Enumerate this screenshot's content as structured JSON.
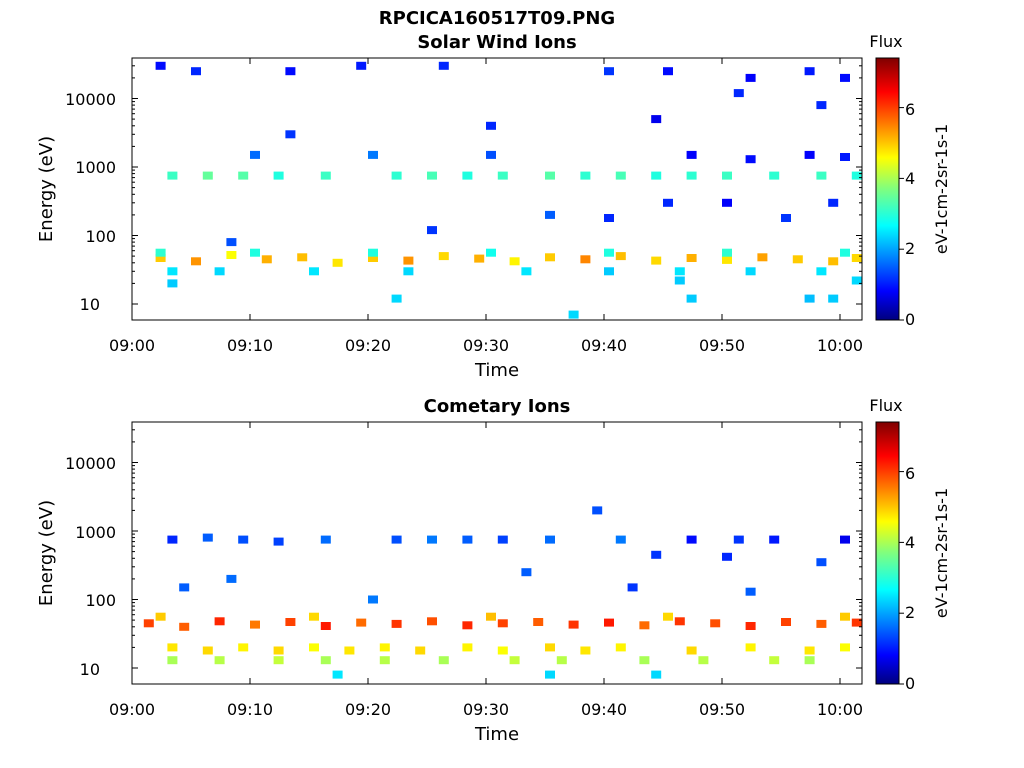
{
  "figure_title": "RPCICA160517T09.PNG",
  "panels": [
    {
      "title": "Solar Wind Ions",
      "xlabel": "Time",
      "ylabel": "Energy (eV)",
      "cbar_title": "Flux",
      "cbar_label": "eV-1cm-2sr-1s-1",
      "cbar_ticks": [
        "0",
        "2",
        "4",
        "6"
      ],
      "y_ticks": [
        "10",
        "100",
        "1000",
        "10000"
      ],
      "x_ticks": [
        "09:00",
        "09:10",
        "09:20",
        "09:30",
        "09:40",
        "09:50",
        "10:00"
      ]
    },
    {
      "title": "Cometary Ions",
      "xlabel": "Time",
      "ylabel": "Energy (eV)",
      "cbar_title": "Flux",
      "cbar_label": "eV-1cm-2sr-1s-1",
      "cbar_ticks": [
        "0",
        "2",
        "4",
        "6"
      ],
      "y_ticks": [
        "10",
        "100",
        "1000",
        "10000"
      ],
      "x_ticks": [
        "09:00",
        "09:10",
        "09:20",
        "09:30",
        "09:40",
        "09:50",
        "10:00"
      ]
    }
  ],
  "chart_data": [
    {
      "type": "heatmap",
      "title": "Solar Wind Ions",
      "xlabel": "Time",
      "ylabel": "Energy (eV)",
      "x_range": [
        "09:00",
        "10:02"
      ],
      "y_scale": "log",
      "ylim": [
        5.5,
        45000
      ],
      "colorbar": {
        "label": "eV-1cm-2sr-1s-1",
        "title": "Flux",
        "range": [
          0,
          7.4
        ],
        "colormap": "jet"
      },
      "points": [
        [
          2,
          47,
          5.0
        ],
        [
          5,
          42,
          5.4
        ],
        [
          8,
          52,
          4.6
        ],
        [
          11,
          45,
          5.2
        ],
        [
          14,
          48,
          5.1
        ],
        [
          17,
          40,
          4.8
        ],
        [
          20,
          47,
          5.0
        ],
        [
          23,
          43,
          5.4
        ],
        [
          26,
          50,
          4.9
        ],
        [
          29,
          46,
          5.2
        ],
        [
          32,
          42,
          4.7
        ],
        [
          35,
          48,
          5.0
        ],
        [
          38,
          45,
          5.5
        ],
        [
          41,
          50,
          5.1
        ],
        [
          44,
          43,
          4.9
        ],
        [
          47,
          47,
          5.2
        ],
        [
          50,
          44,
          4.8
        ],
        [
          53,
          48,
          5.3
        ],
        [
          56,
          45,
          5.0
        ],
        [
          59,
          42,
          5.1
        ],
        [
          61,
          47,
          4.9
        ],
        [
          2,
          56,
          3.1
        ],
        [
          10,
          56,
          3.0
        ],
        [
          20,
          56,
          3.0
        ],
        [
          30,
          56,
          2.9
        ],
        [
          40,
          56,
          3.0
        ],
        [
          50,
          56,
          3.1
        ],
        [
          60,
          56,
          3.0
        ],
        [
          3,
          750,
          3.2
        ],
        [
          6,
          750,
          3.5
        ],
        [
          9,
          750,
          3.4
        ],
        [
          12,
          750,
          3.0
        ],
        [
          16,
          750,
          3.2
        ],
        [
          22,
          750,
          3.1
        ],
        [
          25,
          750,
          3.3
        ],
        [
          28,
          750,
          3.0
        ],
        [
          31,
          750,
          3.2
        ],
        [
          35,
          750,
          3.4
        ],
        [
          38,
          750,
          3.1
        ],
        [
          41,
          750,
          3.3
        ],
        [
          44,
          750,
          3.0
        ],
        [
          47,
          750,
          3.1
        ],
        [
          50,
          750,
          3.2
        ],
        [
          54,
          750,
          3.1
        ],
        [
          58,
          750,
          3.2
        ],
        [
          61,
          750,
          3.0
        ],
        [
          3,
          30,
          2.6
        ],
        [
          7,
          30,
          2.5
        ],
        [
          15,
          30,
          2.6
        ],
        [
          23,
          30,
          2.5
        ],
        [
          33,
          30,
          2.6
        ],
        [
          40,
          30,
          2.4
        ],
        [
          46,
          30,
          2.6
        ],
        [
          52,
          30,
          2.5
        ],
        [
          58,
          30,
          2.6
        ],
        [
          46,
          22,
          2.4
        ],
        [
          61,
          22,
          2.5
        ],
        [
          47,
          12,
          2.4
        ],
        [
          57,
          12,
          2.3
        ],
        [
          59,
          12,
          2.4
        ],
        [
          22,
          12,
          2.5
        ],
        [
          37,
          7,
          2.5
        ],
        [
          3,
          20,
          2.4
        ],
        [
          2,
          30000,
          1.0
        ],
        [
          5,
          25000,
          1.2
        ],
        [
          13,
          25000,
          1.0
        ],
        [
          19,
          30000,
          1.1
        ],
        [
          26,
          30000,
          1.2
        ],
        [
          40,
          25000,
          1.3
        ],
        [
          45,
          25000,
          1.0
        ],
        [
          52,
          20000,
          0.9
        ],
        [
          57,
          25000,
          1.1
        ],
        [
          60,
          20000,
          1.0
        ],
        [
          44,
          5000,
          0.8
        ],
        [
          51,
          12000,
          1.2
        ],
        [
          58,
          8000,
          1.2
        ],
        [
          13,
          3000,
          1.3
        ],
        [
          30,
          4000,
          1.2
        ],
        [
          47,
          1500,
          0.9
        ],
        [
          52,
          1300,
          1.0
        ],
        [
          57,
          1500,
          0.9
        ],
        [
          60,
          1400,
          1.1
        ],
        [
          45,
          300,
          1.2
        ],
        [
          50,
          300,
          0.9
        ],
        [
          55,
          180,
          1.3
        ],
        [
          59,
          300,
          1.2
        ],
        [
          8,
          80,
          1.5
        ],
        [
          25,
          120,
          1.3
        ],
        [
          35,
          200,
          1.6
        ],
        [
          40,
          180,
          1.2
        ],
        [
          10,
          1500,
          1.7
        ],
        [
          20,
          1500,
          1.8
        ],
        [
          30,
          1500,
          1.5
        ]
      ]
    },
    {
      "type": "heatmap",
      "title": "Cometary Ions",
      "xlabel": "Time",
      "ylabel": "Energy (eV)",
      "x_range": [
        "09:00",
        "10:02"
      ],
      "y_scale": "log",
      "ylim": [
        5.5,
        45000
      ],
      "colorbar": {
        "label": "eV-1cm-2sr-1s-1",
        "title": "Flux",
        "range": [
          0,
          7.4
        ],
        "colormap": "jet"
      },
      "points": [
        [
          1,
          45,
          6.0
        ],
        [
          4,
          40,
          5.8
        ],
        [
          7,
          48,
          6.2
        ],
        [
          10,
          43,
          5.6
        ],
        [
          13,
          47,
          6.0
        ],
        [
          16,
          41,
          6.3
        ],
        [
          19,
          46,
          5.7
        ],
        [
          22,
          44,
          6.1
        ],
        [
          25,
          48,
          5.9
        ],
        [
          28,
          42,
          6.2
        ],
        [
          31,
          45,
          6.0
        ],
        [
          34,
          47,
          5.8
        ],
        [
          37,
          43,
          6.1
        ],
        [
          40,
          46,
          6.3
        ],
        [
          43,
          42,
          5.7
        ],
        [
          46,
          48,
          6.1
        ],
        [
          49,
          45,
          5.9
        ],
        [
          52,
          41,
          6.2
        ],
        [
          55,
          47,
          6.0
        ],
        [
          58,
          44,
          5.8
        ],
        [
          61,
          46,
          6.1
        ],
        [
          2,
          56,
          5.0
        ],
        [
          15,
          56,
          4.9
        ],
        [
          30,
          56,
          5.1
        ],
        [
          45,
          56,
          4.9
        ],
        [
          60,
          56,
          5.0
        ],
        [
          3,
          20,
          4.8
        ],
        [
          6,
          18,
          4.9
        ],
        [
          9,
          20,
          4.7
        ],
        [
          12,
          18,
          4.9
        ],
        [
          15,
          20,
          4.6
        ],
        [
          18,
          18,
          4.8
        ],
        [
          21,
          20,
          4.7
        ],
        [
          24,
          18,
          4.9
        ],
        [
          28,
          20,
          4.7
        ],
        [
          31,
          18,
          4.6
        ],
        [
          35,
          20,
          4.9
        ],
        [
          38,
          18,
          4.8
        ],
        [
          41,
          20,
          4.7
        ],
        [
          47,
          18,
          4.9
        ],
        [
          52,
          20,
          4.7
        ],
        [
          57,
          18,
          4.8
        ],
        [
          60,
          20,
          4.6
        ],
        [
          3,
          13,
          4.0
        ],
        [
          7,
          13,
          4.1
        ],
        [
          12,
          13,
          4.2
        ],
        [
          16,
          13,
          4.0
        ],
        [
          21,
          13,
          4.1
        ],
        [
          26,
          13,
          4.0
        ],
        [
          32,
          13,
          4.2
        ],
        [
          36,
          13,
          4.1
        ],
        [
          43,
          13,
          4.0
        ],
        [
          48,
          13,
          4.1
        ],
        [
          54,
          13,
          4.2
        ],
        [
          57,
          13,
          4.0
        ],
        [
          44,
          8,
          2.5
        ],
        [
          17,
          8,
          2.6
        ],
        [
          35,
          8,
          2.5
        ],
        [
          3,
          750,
          1.2
        ],
        [
          6,
          800,
          1.6
        ],
        [
          9,
          750,
          1.5
        ],
        [
          12,
          700,
          1.4
        ],
        [
          16,
          750,
          1.7
        ],
        [
          22,
          750,
          1.5
        ],
        [
          25,
          750,
          1.8
        ],
        [
          28,
          750,
          1.6
        ],
        [
          31,
          750,
          1.4
        ],
        [
          35,
          750,
          1.7
        ],
        [
          39,
          2000,
          1.5
        ],
        [
          41,
          750,
          1.8
        ],
        [
          47,
          750,
          1.0
        ],
        [
          51,
          750,
          1.3
        ],
        [
          54,
          750,
          1.1
        ],
        [
          60,
          750,
          0.8
        ],
        [
          44,
          450,
          1.3
        ],
        [
          50,
          420,
          1.2
        ],
        [
          58,
          350,
          1.5
        ],
        [
          4,
          150,
          1.6
        ],
        [
          8,
          200,
          1.7
        ],
        [
          20,
          100,
          1.8
        ],
        [
          33,
          250,
          1.6
        ],
        [
          42,
          150,
          1.3
        ],
        [
          52,
          130,
          1.6
        ]
      ]
    }
  ]
}
